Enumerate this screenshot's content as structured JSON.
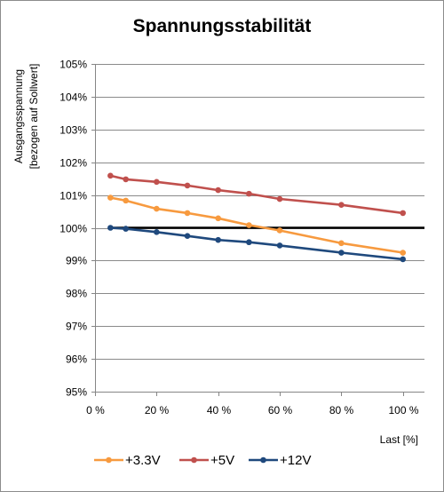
{
  "chart_data": {
    "type": "line",
    "title": "Spannungsstabilität",
    "xlabel": "Last [%]",
    "ylabel_lines": [
      "Ausgangsspannung",
      "[bezogen auf Sollwert]"
    ],
    "x_tick_labels": [
      "0 %",
      "20 %",
      "40 %",
      "60 %",
      "80 %",
      "100 %"
    ],
    "x_ticks": [
      0,
      20,
      40,
      60,
      80,
      100
    ],
    "y_tick_labels": [
      "95%",
      "96%",
      "97%",
      "98%",
      "99%",
      "100%",
      "101%",
      "102%",
      "103%",
      "104%",
      "105%"
    ],
    "y_ticks": [
      95,
      96,
      97,
      98,
      99,
      100,
      101,
      102,
      103,
      104,
      105
    ],
    "xlim": [
      0,
      107
    ],
    "ylim": [
      95,
      105
    ],
    "grid": "horizontal",
    "legend_position": "bottom",
    "reference_line": {
      "y": 100,
      "x_range": [
        5,
        107
      ],
      "color": "#000000"
    },
    "series": [
      {
        "name": "+3.3V",
        "color": "#f79a3f",
        "x": [
          5,
          10,
          20,
          30,
          40,
          50,
          60,
          80,
          100
        ],
        "y": [
          100.92,
          100.83,
          100.58,
          100.45,
          100.29,
          100.08,
          99.92,
          99.53,
          99.24
        ]
      },
      {
        "name": "+5V",
        "color": "#c0504d",
        "x": [
          5,
          10,
          20,
          30,
          40,
          50,
          60,
          80,
          100
        ],
        "y": [
          101.59,
          101.48,
          101.4,
          101.29,
          101.15,
          101.04,
          100.88,
          100.7,
          100.45
        ]
      },
      {
        "name": "+12V",
        "color": "#1f497d",
        "x": [
          5,
          10,
          20,
          30,
          40,
          50,
          60,
          80,
          100
        ],
        "y": [
          100.0,
          99.97,
          99.87,
          99.75,
          99.63,
          99.56,
          99.46,
          99.24,
          99.04
        ]
      }
    ]
  }
}
